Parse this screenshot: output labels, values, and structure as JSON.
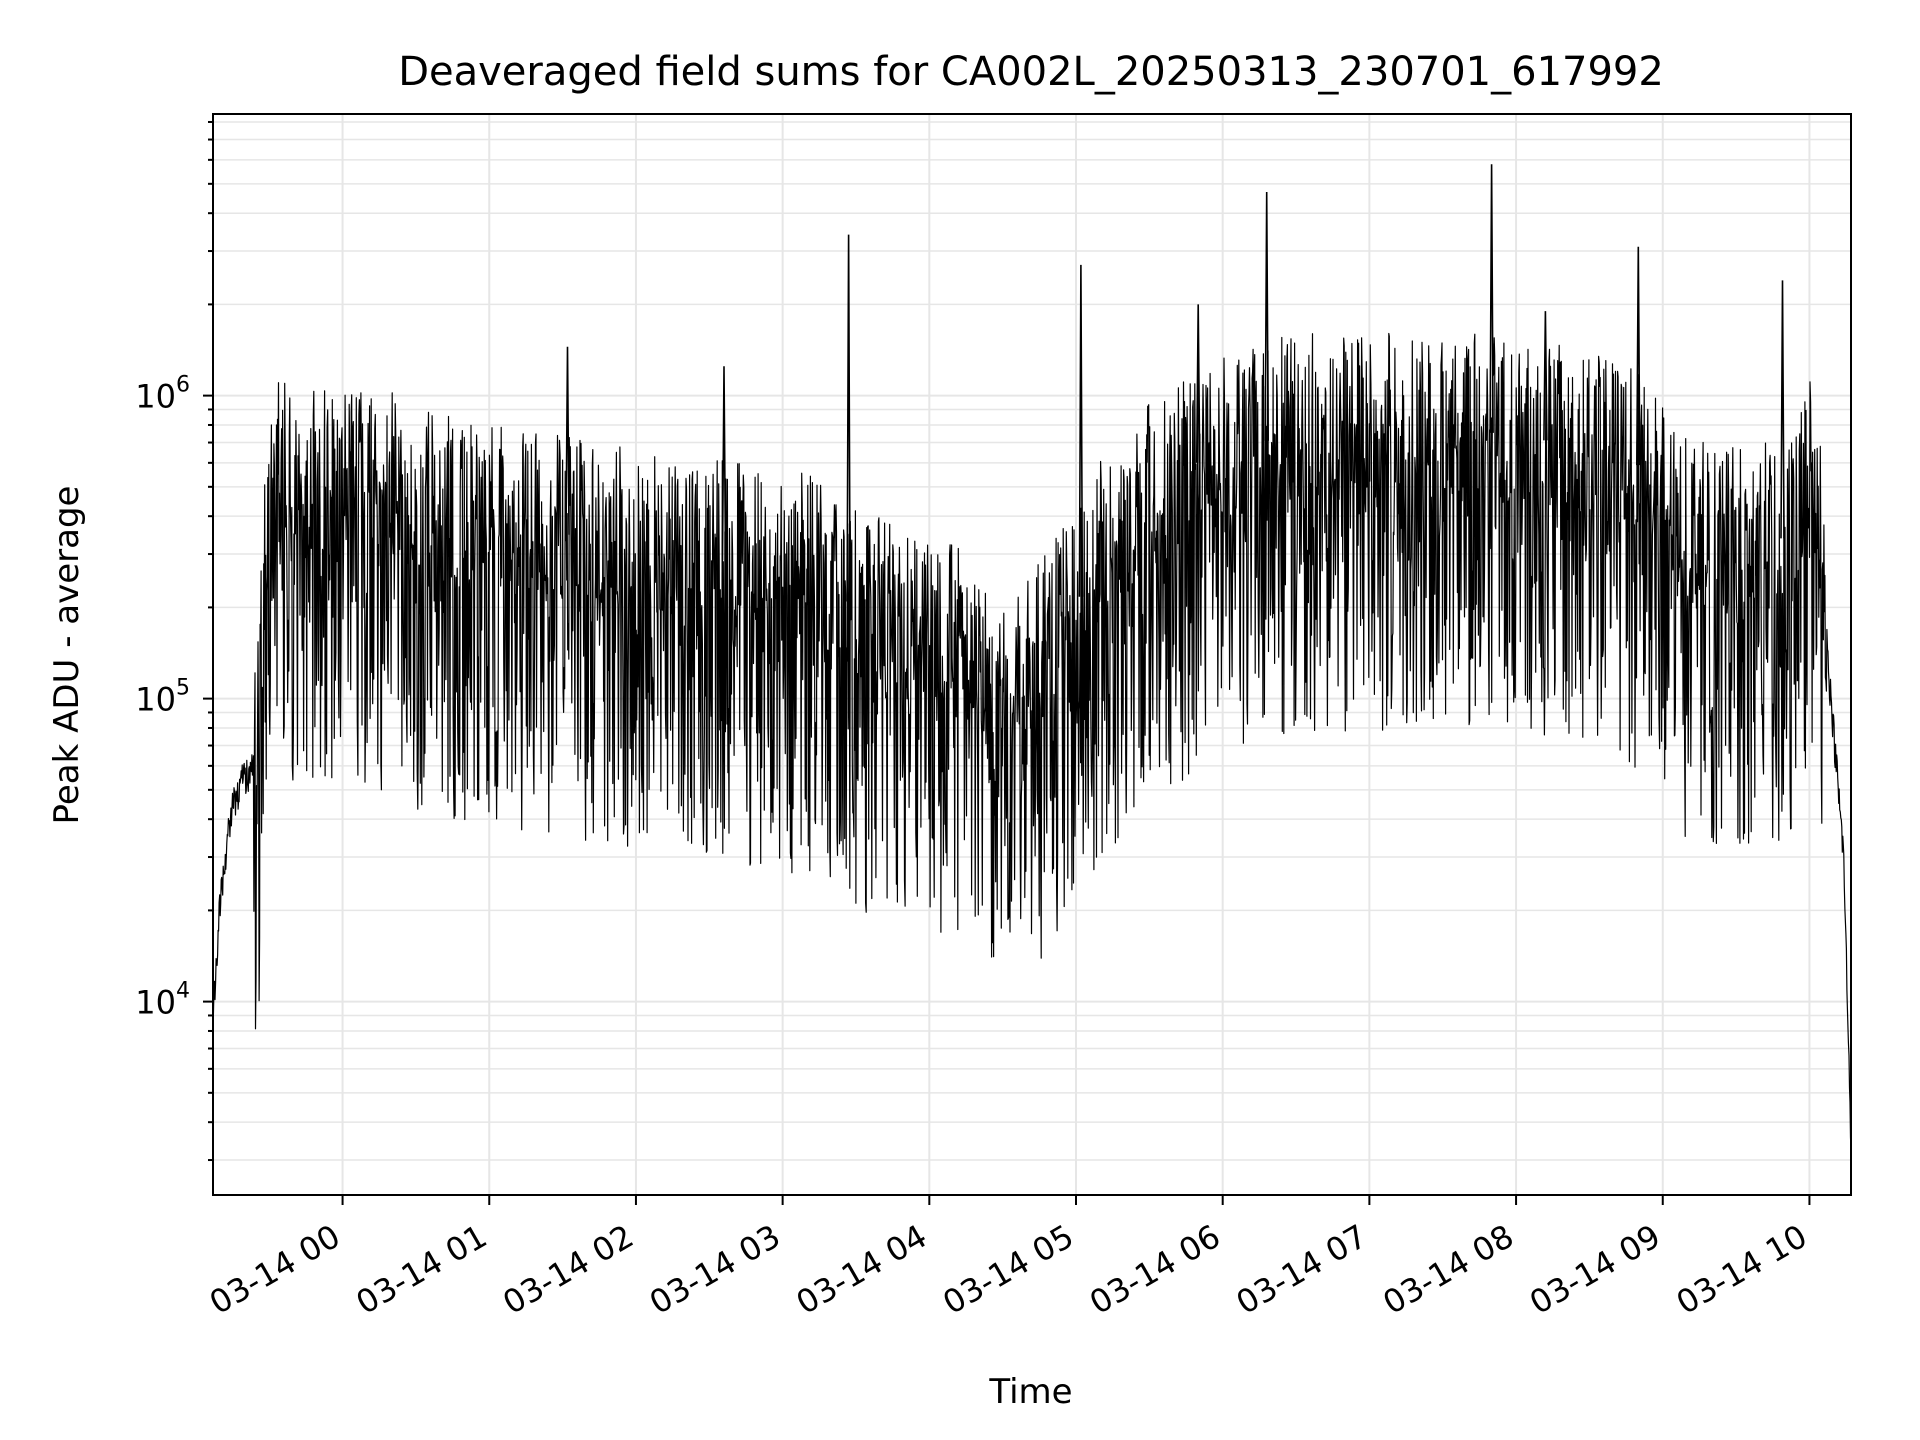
{
  "chart_data": {
    "type": "line",
    "title": "Deaveraged field sums for CA002L_20250313_230701_617992",
    "xlabel": "Time",
    "ylabel": "Peak ADU - average",
    "y_scale": "log",
    "ylim": [
      2300,
      8500000
    ],
    "xlim": [
      "2025-03-13T23:07:00",
      "2025-03-14T10:17:00"
    ],
    "grid": true,
    "line_color": "#000000",
    "grid_color": "#e6e6e6",
    "x_ticks": [
      {
        "t": "2025-03-14T00:00:00",
        "label": "03-14 00"
      },
      {
        "t": "2025-03-14T01:00:00",
        "label": "03-14 01"
      },
      {
        "t": "2025-03-14T02:00:00",
        "label": "03-14 02"
      },
      {
        "t": "2025-03-14T03:00:00",
        "label": "03-14 03"
      },
      {
        "t": "2025-03-14T04:00:00",
        "label": "03-14 04"
      },
      {
        "t": "2025-03-14T05:00:00",
        "label": "03-14 05"
      },
      {
        "t": "2025-03-14T06:00:00",
        "label": "03-14 06"
      },
      {
        "t": "2025-03-14T07:00:00",
        "label": "03-14 07"
      },
      {
        "t": "2025-03-14T08:00:00",
        "label": "03-14 08"
      },
      {
        "t": "2025-03-14T09:00:00",
        "label": "03-14 09"
      },
      {
        "t": "2025-03-14T10:00:00",
        "label": "03-14 10"
      }
    ],
    "y_ticks": [
      {
        "value": 10000,
        "base": "10",
        "exp": "4"
      },
      {
        "value": 100000,
        "base": "10",
        "exp": "5"
      },
      {
        "value": 1000000,
        "base": "10",
        "exp": "6"
      }
    ],
    "x": [
      "2025-03-13T23:07:00",
      "2025-03-13T23:10:00",
      "2025-03-13T23:15:00",
      "2025-03-13T23:20:00",
      "2025-03-13T23:25:00",
      "2025-03-13T23:30:00",
      "2025-03-13T23:40:00",
      "2025-03-13T23:50:00",
      "2025-03-14T00:00:00",
      "2025-03-14T00:10:00",
      "2025-03-14T00:20:00",
      "2025-03-14T00:30:00",
      "2025-03-14T00:45:00",
      "2025-03-14T01:00:00",
      "2025-03-14T01:15:00",
      "2025-03-14T01:30:00",
      "2025-03-14T01:45:00",
      "2025-03-14T02:00:00",
      "2025-03-14T02:15:00",
      "2025-03-14T02:30:00",
      "2025-03-14T02:45:00",
      "2025-03-14T03:00:00",
      "2025-03-14T03:15:00",
      "2025-03-14T03:30:00",
      "2025-03-14T03:45:00",
      "2025-03-14T04:00:00",
      "2025-03-14T04:10:00",
      "2025-03-14T04:20:00",
      "2025-03-14T04:30:00",
      "2025-03-14T04:40:00",
      "2025-03-14T04:50:00",
      "2025-03-14T05:00:00",
      "2025-03-14T05:10:00",
      "2025-03-14T05:20:00",
      "2025-03-14T05:30:00",
      "2025-03-14T05:40:00",
      "2025-03-14T05:50:00",
      "2025-03-14T06:00:00",
      "2025-03-14T06:15:00",
      "2025-03-14T06:30:00",
      "2025-03-14T06:45:00",
      "2025-03-14T07:00:00",
      "2025-03-14T07:15:00",
      "2025-03-14T07:30:00",
      "2025-03-14T07:45:00",
      "2025-03-14T08:00:00",
      "2025-03-14T08:15:00",
      "2025-03-14T08:30:00",
      "2025-03-14T08:45:00",
      "2025-03-14T08:55:00",
      "2025-03-14T09:05:00",
      "2025-03-14T09:20:00",
      "2025-03-14T09:35:00",
      "2025-03-14T09:45:00",
      "2025-03-14T09:55:00",
      "2025-03-14T10:00:00",
      "2025-03-14T10:04:00",
      "2025-03-14T10:08:00",
      "2025-03-14T10:11:00",
      "2025-03-14T10:14:00",
      "2025-03-14T10:17:00"
    ],
    "typical": [
      9000,
      22000,
      45000,
      55000,
      60000,
      550000,
      500000,
      480000,
      500000,
      520000,
      480000,
      420000,
      400000,
      380000,
      360000,
      350000,
      330000,
      320000,
      300000,
      290000,
      280000,
      270000,
      250000,
      200000,
      180000,
      170000,
      160000,
      120000,
      100000,
      120000,
      150000,
      200000,
      300000,
      350000,
      450000,
      500000,
      600000,
      650000,
      700000,
      750000,
      750000,
      750000,
      760000,
      760000,
      750000,
      760000,
      700000,
      650000,
      600000,
      580000,
      350000,
      330000,
      330000,
      330000,
      350000,
      600000,
      400000,
      120000,
      60000,
      30000,
      3500
    ],
    "spikes": [
      {
        "t": "2025-03-14T03:27:00",
        "value": 3400000
      },
      {
        "t": "2025-03-14T05:02:00",
        "value": 2700000
      },
      {
        "t": "2025-03-14T06:18:00",
        "value": 4700000
      },
      {
        "t": "2025-03-14T07:50:00",
        "value": 5800000
      },
      {
        "t": "2025-03-14T08:50:00",
        "value": 3100000
      },
      {
        "t": "2025-03-14T09:49:00",
        "value": 2400000
      },
      {
        "t": "2025-03-14T05:50:00",
        "value": 2000000
      },
      {
        "t": "2025-03-14T08:12:00",
        "value": 1900000
      },
      {
        "t": "2025-03-14T01:32:00",
        "value": 1450000
      },
      {
        "t": "2025-03-14T02:36:00",
        "value": 1250000
      }
    ]
  }
}
